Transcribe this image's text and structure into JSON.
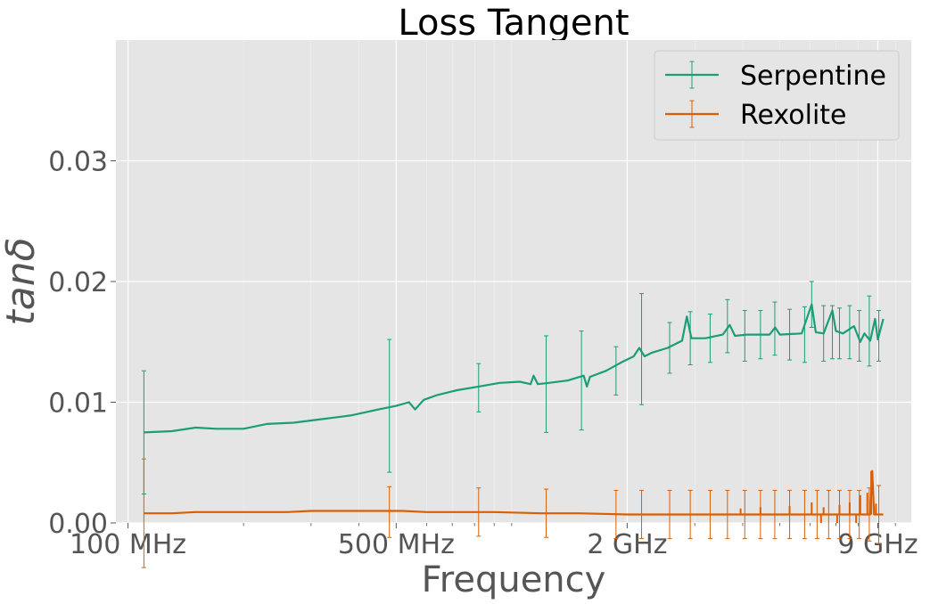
{
  "chart_data": {
    "type": "line",
    "title": "Loss Tangent",
    "xlabel": "Frequency",
    "ylabel": "tanδ",
    "xscale": "log",
    "xlim_hz": [
      93000000,
      11000000000
    ],
    "ylim": [
      0,
      0.04
    ],
    "grid": true,
    "legend_position": "upper right",
    "x_ticks": [
      {
        "value": 100000000,
        "label": "100 MHz"
      },
      {
        "value": 500000000,
        "label": "500 MHz"
      },
      {
        "value": 2000000000,
        "label": "2 GHz"
      },
      {
        "value": 9000000000,
        "label": "9 GHz"
      }
    ],
    "x_minor_ticks": [
      200000000,
      300000000,
      400000000,
      600000000,
      700000000,
      800000000,
      900000000,
      1000000000,
      3000000000,
      4000000000,
      5000000000,
      6000000000,
      7000000000,
      8000000000,
      10000000000
    ],
    "y_ticks": [
      {
        "value": 0.0,
        "label": "0.00"
      },
      {
        "value": 0.01,
        "label": "0.01"
      },
      {
        "value": 0.02,
        "label": "0.02"
      },
      {
        "value": 0.03,
        "label": "0.03"
      }
    ],
    "series": [
      {
        "name": "Serpentine",
        "color": "#1b9e77",
        "x": [
          110000000,
          130000000,
          150000000,
          170000000,
          200000000,
          230000000,
          270000000,
          320000000,
          380000000,
          450000000,
          500000000,
          540000000,
          560000000,
          590000000,
          640000000,
          720000000,
          820000000,
          930000000,
          1050000000,
          1120000000,
          1140000000,
          1170000000,
          1250000000,
          1400000000,
          1540000000,
          1570000000,
          1600000000,
          1760000000,
          1930000000,
          2080000000,
          2150000000,
          2220000000,
          2320000000,
          2550000000,
          2780000000,
          2860000000,
          2940000000,
          3200000000,
          3550000000,
          3700000000,
          3820000000,
          4100000000,
          4700000000,
          4860000000,
          5000000000,
          5700000000,
          6050000000,
          6200000000,
          6500000000,
          6850000000,
          7000000000,
          7300000000,
          7800000000,
          8100000000,
          8300000000,
          8600000000,
          8850000000,
          9000000000,
          9300000000
        ],
        "y": [
          0.0075,
          0.0076,
          0.0079,
          0.0078,
          0.0078,
          0.0082,
          0.0083,
          0.0086,
          0.0089,
          0.0094,
          0.0097,
          0.01,
          0.0094,
          0.0102,
          0.0106,
          0.011,
          0.0113,
          0.0116,
          0.0117,
          0.0115,
          0.0122,
          0.0115,
          0.0116,
          0.0118,
          0.0122,
          0.0113,
          0.0121,
          0.0126,
          0.0133,
          0.0138,
          0.0145,
          0.0138,
          0.0141,
          0.0145,
          0.0151,
          0.0171,
          0.0153,
          0.0153,
          0.0156,
          0.0164,
          0.0155,
          0.0156,
          0.0156,
          0.0162,
          0.0156,
          0.0157,
          0.0181,
          0.0158,
          0.0157,
          0.0176,
          0.0159,
          0.0157,
          0.0163,
          0.015,
          0.0157,
          0.0151,
          0.0169,
          0.0152,
          0.0169
        ],
        "error_bars": [
          {
            "x": 110000000,
            "y": 0.0075,
            "err": 0.0051
          },
          {
            "x": 480000000,
            "y": 0.0097,
            "err": 0.0055
          },
          {
            "x": 820000000,
            "y": 0.0112,
            "err": 0.002
          },
          {
            "x": 1230000000,
            "y": 0.0115,
            "err": 0.004
          },
          {
            "x": 1520000000,
            "y": 0.0118,
            "err": 0.0041
          },
          {
            "x": 1870000000,
            "y": 0.0126,
            "err": 0.002
          },
          {
            "x": 2180000000,
            "y": 0.0144,
            "err": 0.0046
          },
          {
            "x": 2580000000,
            "y": 0.0145,
            "err": 0.0021
          },
          {
            "x": 2920000000,
            "y": 0.0153,
            "err": 0.0022
          },
          {
            "x": 3290000000,
            "y": 0.0153,
            "err": 0.002
          },
          {
            "x": 3650000000,
            "y": 0.0163,
            "err": 0.0022
          },
          {
            "x": 4050000000,
            "y": 0.0155,
            "err": 0.0021
          },
          {
            "x": 4450000000,
            "y": 0.0156,
            "err": 0.002
          },
          {
            "x": 4850000000,
            "y": 0.0161,
            "err": 0.0022
          },
          {
            "x": 5300000000,
            "y": 0.0156,
            "err": 0.0021
          },
          {
            "x": 5800000000,
            "y": 0.0156,
            "err": 0.0023
          },
          {
            "x": 6050000000,
            "y": 0.0181,
            "err": 0.0019
          },
          {
            "x": 6500000000,
            "y": 0.0157,
            "err": 0.0023
          },
          {
            "x": 6850000000,
            "y": 0.0158,
            "err": 0.0022
          },
          {
            "x": 7150000000,
            "y": 0.0157,
            "err": 0.0021
          },
          {
            "x": 7600000000,
            "y": 0.0158,
            "err": 0.0022
          },
          {
            "x": 8050000000,
            "y": 0.0155,
            "err": 0.0021
          },
          {
            "x": 8550000000,
            "y": 0.0159,
            "err": 0.0029
          },
          {
            "x": 9050000000,
            "y": 0.0155,
            "err": 0.0021
          }
        ]
      },
      {
        "name": "Rexolite",
        "color": "#d95f02",
        "x": [
          110000000,
          130000000,
          150000000,
          180000000,
          210000000,
          260000000,
          300000000,
          370000000,
          450000000,
          520000000,
          600000000,
          700000000,
          900000000,
          1200000000,
          1500000000,
          2000000000,
          2500000000,
          3000000000,
          4000000000,
          5000000000,
          6000000000,
          7000000000,
          8000000000,
          8600000000,
          8700000000,
          8800000000,
          9000000000,
          9300000000
        ],
        "y": [
          0.0008,
          0.0008,
          0.0009,
          0.0009,
          0.0009,
          0.0009,
          0.001,
          0.001,
          0.001,
          0.001,
          0.0009,
          0.0009,
          0.0009,
          0.0008,
          0.0008,
          0.0007,
          0.0007,
          0.0007,
          0.0007,
          0.0007,
          0.0007,
          0.0007,
          0.0007,
          0.0007,
          0.0043,
          0.0007,
          0.0007,
          0.0007
        ],
        "spikes": [
          {
            "x": 3950000000,
            "y": 0.0012
          },
          {
            "x": 4450000000,
            "y": 0.0013
          },
          {
            "x": 5300000000,
            "y": 0.0014
          },
          {
            "x": 6050000000,
            "y": 0.0017
          },
          {
            "x": 6500000000,
            "y": 0.0013
          },
          {
            "x": 7150000000,
            "y": 0.0015
          },
          {
            "x": 7600000000,
            "y": 0.0017
          },
          {
            "x": 8100000000,
            "y": 0.0023
          },
          {
            "x": 8450000000,
            "y": 0.0025
          },
          {
            "x": 8650000000,
            "y": 0.0043
          },
          {
            "x": 8900000000,
            "y": 0.0016
          }
        ],
        "dips": [
          {
            "x": 6400000000,
            "y": -0.0003
          },
          {
            "x": 7050000000,
            "y": -0.0003
          },
          {
            "x": 7900000000,
            "y": -0.0003
          }
        ],
        "error_bars": [
          {
            "x": 110000000,
            "y": 0.0008,
            "err": 0.0045
          },
          {
            "x": 480000000,
            "y": 0.0009,
            "err": 0.0021
          },
          {
            "x": 820000000,
            "y": 0.0009,
            "err": 0.002
          },
          {
            "x": 1230000000,
            "y": 0.0008,
            "err": 0.002
          },
          {
            "x": 1870000000,
            "y": 0.0007,
            "err": 0.002
          },
          {
            "x": 2180000000,
            "y": 0.0007,
            "err": 0.002
          },
          {
            "x": 2580000000,
            "y": 0.0007,
            "err": 0.002
          },
          {
            "x": 2920000000,
            "y": 0.0007,
            "err": 0.002
          },
          {
            "x": 3290000000,
            "y": 0.0007,
            "err": 0.002
          },
          {
            "x": 3650000000,
            "y": 0.0007,
            "err": 0.002
          },
          {
            "x": 4050000000,
            "y": 0.0007,
            "err": 0.002
          },
          {
            "x": 4450000000,
            "y": 0.0007,
            "err": 0.002
          },
          {
            "x": 4850000000,
            "y": 0.0007,
            "err": 0.002
          },
          {
            "x": 5300000000,
            "y": 0.0007,
            "err": 0.002
          },
          {
            "x": 5800000000,
            "y": 0.0007,
            "err": 0.002
          },
          {
            "x": 6250000000,
            "y": 0.0007,
            "err": 0.002
          },
          {
            "x": 6700000000,
            "y": 0.0007,
            "err": 0.002
          },
          {
            "x": 7150000000,
            "y": 0.0007,
            "err": 0.002
          },
          {
            "x": 7600000000,
            "y": 0.0007,
            "err": 0.002
          },
          {
            "x": 8050000000,
            "y": 0.0007,
            "err": 0.002
          },
          {
            "x": 8550000000,
            "y": 0.0007,
            "err": 0.0022
          },
          {
            "x": 9050000000,
            "y": 0.0007,
            "err": 0.0024
          }
        ]
      }
    ]
  }
}
